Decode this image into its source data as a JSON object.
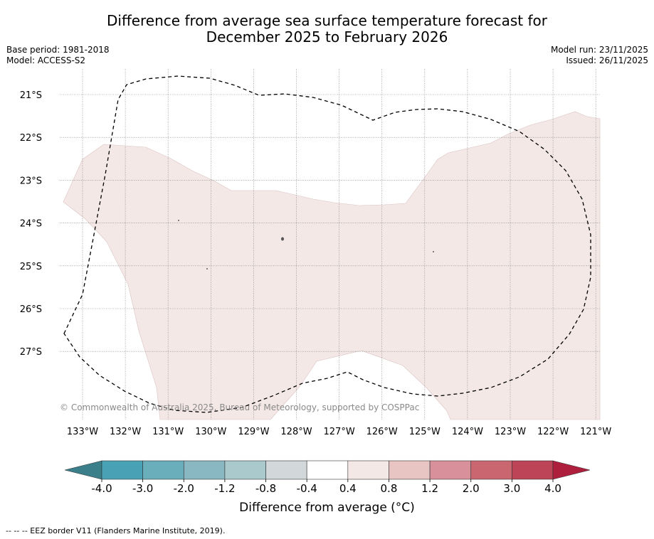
{
  "header": {
    "title_line1": "Difference from average sea surface temperature forecast for",
    "title_line2": "December 2025 to February 2026",
    "base_period": "Base period: 1981-2018",
    "model": "Model: ACCESS-S2",
    "model_run": "Model run: 23/11/2025",
    "issued": "Issued: 26/11/2025"
  },
  "map": {
    "lon_labels": [
      "133°W",
      "132°W",
      "131°W",
      "130°W",
      "129°W",
      "128°W",
      "127°W",
      "126°W",
      "125°W",
      "124°W",
      "123°W",
      "122°W",
      "121°W"
    ],
    "lat_labels": [
      "21°S",
      "22°S",
      "23°S",
      "24°S",
      "25°S",
      "26°S",
      "27°S"
    ],
    "copyright": "© Commonwealth of Australia 2025, Bureau of Meteorology, supported by COSPPac",
    "anomaly_fill_color": "#f4e8e7"
  },
  "colorbar": {
    "title": "Difference from average (°C)",
    "tick_labels": [
      "-4.0",
      "-3.0",
      "-2.0",
      "-1.2",
      "-0.8",
      "-0.4",
      "0.4",
      "0.8",
      "1.2",
      "2.0",
      "3.0",
      "4.0"
    ],
    "colors": [
      "#48a1b4",
      "#6aaebb",
      "#89b8c3",
      "#aac9cd",
      "#d2d8d9",
      "#ffffff",
      "#f4e8e7",
      "#e8c4c2",
      "#d8909a",
      "#c9666f",
      "#bd4456"
    ],
    "extend_low_color": "#3a7f8a",
    "extend_high_color": "#ad1f3c"
  },
  "footnote": "--  --  -- EEZ border V11 (Flanders Marine Institute, 2019)."
}
